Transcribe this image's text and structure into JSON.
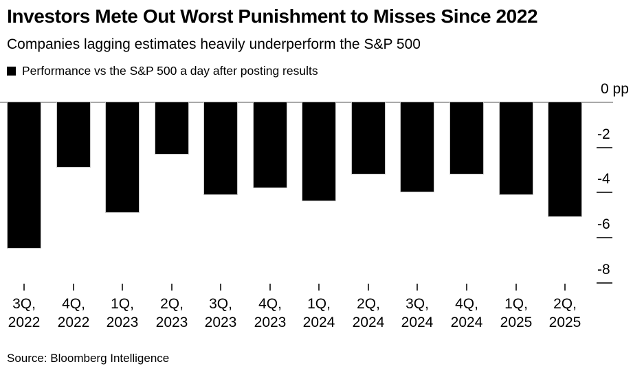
{
  "chart_data": {
    "type": "bar",
    "title": "Investors Mete Out Worst Punishment to Misses Since 2022",
    "subtitle": "Companies lagging estimates heavily underperform the S&P 500",
    "legend": [
      "Performance vs the S&P 500 a day after posting results"
    ],
    "legend_position": "top-left",
    "source": "Source: Bloomberg Intelligence",
    "categories": [
      "3Q, 2022",
      "4Q, 2022",
      "1Q, 2023",
      "2Q, 2023",
      "3Q, 2023",
      "4Q, 2023",
      "1Q, 2024",
      "2Q, 2024",
      "3Q, 2024",
      "4Q, 2024",
      "1Q, 2025",
      "2Q, 2025"
    ],
    "values": [
      -6.5,
      -2.9,
      -4.9,
      -2.3,
      -4.1,
      -3.8,
      -4.4,
      -3.2,
      -4.0,
      -3.2,
      -4.1,
      -5.1
    ],
    "xlabel": "",
    "ylabel": "pp",
    "ylim": [
      -8.5,
      0
    ],
    "yticks": [
      0,
      -2,
      -4,
      -6,
      -8
    ],
    "ytick_labels": [
      "0 pp",
      "-2",
      "-4",
      "-6",
      "-8"
    ],
    "grid": false,
    "bar_color": "#000000",
    "axis_line_color": "#a8a8a8",
    "tick_color": "#3a3a3a",
    "text_color": "#000000"
  }
}
